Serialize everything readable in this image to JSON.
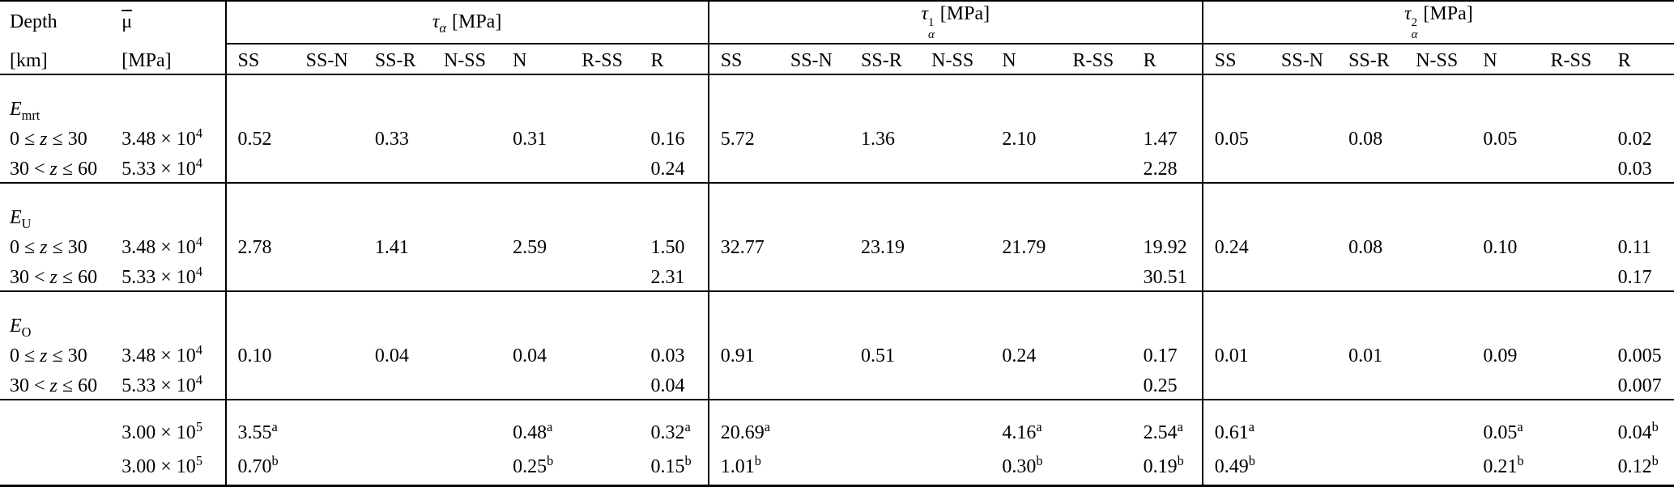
{
  "page": {
    "background": "#ffffff",
    "text_color": "#000000",
    "rule_color": "#000000"
  },
  "table": {
    "header": {
      "depth_line1": "Depth",
      "depth_line2": "[km]",
      "mu_symbol": "μ",
      "mu_unit": "[MPa]",
      "groups": [
        {
          "symbol": "τ",
          "sub": "α",
          "sup": "",
          "unit": "[MPa]",
          "columns": [
            "SS",
            "SS-N",
            "SS-R",
            "N-SS",
            "N",
            "R-SS",
            "R"
          ]
        },
        {
          "symbol": "τ",
          "sub": "α",
          "sup": "1",
          "unit": "[MPa]",
          "columns": [
            "SS",
            "SS-N",
            "SS-R",
            "N-SS",
            "N",
            "R-SS",
            "R"
          ]
        },
        {
          "symbol": "τ",
          "sub": "α",
          "sup": "2",
          "unit": "[MPa]",
          "columns": [
            "SS",
            "SS-N",
            "SS-R",
            "N-SS",
            "N",
            "R-SS",
            "R"
          ]
        }
      ]
    },
    "col_widths": {
      "depth": 150,
      "mu": 128,
      "group1": 85,
      "group2": 87,
      "group3": 83
    },
    "blocks": [
      {
        "label": {
          "base": "E",
          "sub": "mrt"
        },
        "rows": [
          {
            "depth": {
              "pre": "0 ≤ ",
              "var": "z",
              "post": " ≤ 30"
            },
            "mu": {
              "mant": "3.48 × 10",
              "exp": "4"
            },
            "values": [
              [
                "0.52",
                "",
                "0.33",
                "",
                "0.31",
                "",
                "0.16"
              ],
              [
                "5.72",
                "",
                "1.36",
                "",
                "2.10",
                "",
                "1.47"
              ],
              [
                "0.05",
                "",
                "0.08",
                "",
                "0.05",
                "",
                "0.02"
              ]
            ]
          },
          {
            "depth": {
              "pre": "30 < ",
              "var": "z",
              "post": " ≤ 60"
            },
            "mu": {
              "mant": "5.33 × 10",
              "exp": "4"
            },
            "values": [
              [
                "",
                "",
                "",
                "",
                "",
                "",
                "0.24"
              ],
              [
                "",
                "",
                "",
                "",
                "",
                "",
                "2.28"
              ],
              [
                "",
                "",
                "",
                "",
                "",
                "",
                "0.03"
              ]
            ]
          }
        ]
      },
      {
        "label": {
          "base": "E",
          "sub": "U"
        },
        "rows": [
          {
            "depth": {
              "pre": "0 ≤ ",
              "var": "z",
              "post": " ≤ 30"
            },
            "mu": {
              "mant": "3.48 × 10",
              "exp": "4"
            },
            "values": [
              [
                "2.78",
                "",
                "1.41",
                "",
                "2.59",
                "",
                "1.50"
              ],
              [
                "32.77",
                "",
                "23.19",
                "",
                "21.79",
                "",
                "19.92"
              ],
              [
                "0.24",
                "",
                "0.08",
                "",
                "0.10",
                "",
                "0.11"
              ]
            ]
          },
          {
            "depth": {
              "pre": "30 < ",
              "var": "z",
              "post": " ≤ 60"
            },
            "mu": {
              "mant": "5.33 × 10",
              "exp": "4"
            },
            "values": [
              [
                "",
                "",
                "",
                "",
                "",
                "",
                "2.31"
              ],
              [
                "",
                "",
                "",
                "",
                "",
                "",
                "30.51"
              ],
              [
                "",
                "",
                "",
                "",
                "",
                "",
                "0.17"
              ]
            ]
          }
        ]
      },
      {
        "label": {
          "base": "E",
          "sub": "O"
        },
        "rows": [
          {
            "depth": {
              "pre": "0 ≤ ",
              "var": "z",
              "post": " ≤ 30"
            },
            "mu": {
              "mant": "3.48 × 10",
              "exp": "4"
            },
            "values": [
              [
                "0.10",
                "",
                "0.04",
                "",
                "0.04",
                "",
                "0.03"
              ],
              [
                "0.91",
                "",
                "0.51",
                "",
                "0.24",
                "",
                "0.17"
              ],
              [
                "0.01",
                "",
                "0.01",
                "",
                "0.09",
                "",
                "0.005"
              ]
            ]
          },
          {
            "depth": {
              "pre": "30 < ",
              "var": "z",
              "post": " ≤ 60"
            },
            "mu": {
              "mant": "5.33 × 10",
              "exp": "4"
            },
            "values": [
              [
                "",
                "",
                "",
                "",
                "",
                "",
                "0.04"
              ],
              [
                "",
                "",
                "",
                "",
                "",
                "",
                "0.25"
              ],
              [
                "",
                "",
                "",
                "",
                "",
                "",
                "0.007"
              ]
            ]
          }
        ]
      },
      {
        "label": null,
        "rows": [
          {
            "depth": null,
            "mu": {
              "mant": "3.00 × 10",
              "exp": "5"
            },
            "values": [
              [
                {
                  "v": "3.55",
                  "sup": "a"
                },
                "",
                "",
                "",
                {
                  "v": "0.48",
                  "sup": "a"
                },
                "",
                {
                  "v": "0.32",
                  "sup": "a"
                }
              ],
              [
                {
                  "v": "20.69",
                  "sup": "a"
                },
                "",
                "",
                "",
                {
                  "v": "4.16",
                  "sup": "a"
                },
                "",
                {
                  "v": "2.54",
                  "sup": "a"
                }
              ],
              [
                {
                  "v": "0.61",
                  "sup": "a"
                },
                "",
                "",
                "",
                {
                  "v": "0.05",
                  "sup": "a"
                },
                "",
                {
                  "v": "0.04",
                  "sup": "b"
                }
              ]
            ]
          },
          {
            "depth": null,
            "mu": {
              "mant": "3.00 × 10",
              "exp": "5"
            },
            "values": [
              [
                {
                  "v": "0.70",
                  "sup": "b"
                },
                "",
                "",
                "",
                {
                  "v": "0.25",
                  "sup": "b"
                },
                "",
                {
                  "v": "0.15",
                  "sup": "b"
                }
              ],
              [
                {
                  "v": "1.01",
                  "sup": "b"
                },
                "",
                "",
                "",
                {
                  "v": "0.30",
                  "sup": "b"
                },
                "",
                {
                  "v": "0.19",
                  "sup": "b"
                }
              ],
              [
                {
                  "v": "0.49",
                  "sup": "b"
                },
                "",
                "",
                "",
                {
                  "v": "0.21",
                  "sup": "b"
                },
                "",
                {
                  "v": "0.12",
                  "sup": "b"
                }
              ]
            ]
          }
        ]
      }
    ]
  }
}
